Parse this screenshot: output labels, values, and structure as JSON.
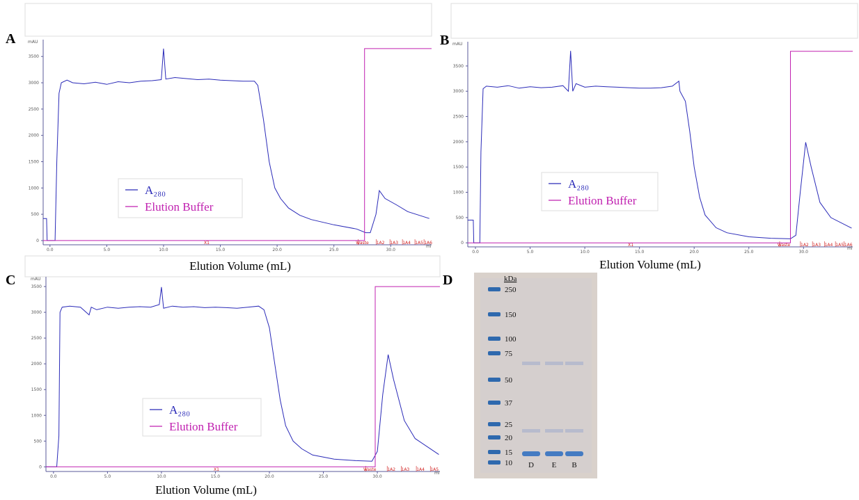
{
  "chart_data": [
    {
      "type": "line",
      "panel": "A",
      "x_label": "Elution Volume (mL)",
      "y_unit": "mAU",
      "x_unit": "ml",
      "xlim": [
        -0.6,
        33.6
      ],
      "ylim": [
        -80,
        3820
      ],
      "xticks": [
        {
          "value": 0,
          "label": "0.0"
        },
        {
          "value": 5,
          "label": "5.0"
        },
        {
          "value": 10,
          "label": "10.0"
        },
        {
          "value": 15,
          "label": "15.0"
        },
        {
          "value": 20,
          "label": "20.0"
        },
        {
          "value": 25,
          "label": "25.0"
        },
        {
          "value": 30,
          "label": "30.0"
        }
      ],
      "yticks": [
        0,
        500,
        1000,
        1500,
        2000,
        2500,
        3000,
        3500
      ],
      "annotations": [
        {
          "x": 13.8,
          "label": "X1"
        },
        {
          "x": 27.5,
          "label": "Waste"
        },
        {
          "x": 29.1,
          "label": "1A2"
        },
        {
          "x": 30.3,
          "label": "1A3"
        },
        {
          "x": 31.4,
          "label": "1A4"
        },
        {
          "x": 32.5,
          "label": "1A5"
        },
        {
          "x": 33.3,
          "label": "1A6"
        }
      ],
      "series": [
        {
          "name": "A₂₈₀",
          "color": "#2a2ab8",
          "x": [
            -0.6,
            -0.3,
            -0.25,
            0.45,
            0.6,
            0.8,
            1.0,
            1.5,
            2,
            3,
            4,
            5,
            6,
            7,
            8,
            9,
            9.8,
            10.0,
            10.2,
            11,
            12,
            13,
            14,
            15,
            16,
            17,
            18,
            18.3,
            18.8,
            19.3,
            19.8,
            20.3,
            21,
            22,
            23,
            25,
            27,
            27.8,
            28.2,
            28.7,
            29.0,
            29.5,
            30.5,
            31.5,
            33.4
          ],
          "values": [
            420,
            420,
            0,
            0,
            1500,
            2800,
            3000,
            3050,
            3000,
            2980,
            3010,
            2970,
            3020,
            3000,
            3030,
            3040,
            3060,
            3650,
            3070,
            3100,
            3080,
            3060,
            3070,
            3050,
            3040,
            3030,
            3030,
            2950,
            2300,
            1500,
            1000,
            800,
            620,
            480,
            400,
            300,
            220,
            150,
            150,
            500,
            950,
            800,
            680,
            550,
            420
          ]
        },
        {
          "name": "Elution Buffer",
          "color": "#c020b0",
          "x": [
            -0.6,
            27.7,
            27.7,
            33.6
          ],
          "values": [
            0,
            0,
            3650,
            3650
          ]
        }
      ]
    },
    {
      "type": "line",
      "panel": "B",
      "x_label": "Elution Volume (mL)",
      "y_unit": "mAU",
      "x_unit": "ml",
      "xlim": [
        -0.7,
        34.5
      ],
      "ylim": [
        -80,
        3980
      ],
      "xticks": [
        {
          "value": 0,
          "label": "0.0"
        },
        {
          "value": 5,
          "label": "5.0"
        },
        {
          "value": 10,
          "label": "10.0"
        },
        {
          "value": 15,
          "label": "15.0"
        },
        {
          "value": 20,
          "label": "20.0"
        },
        {
          "value": 25,
          "label": "25.0"
        },
        {
          "value": 30,
          "label": "30.0"
        }
      ],
      "yticks": [
        0,
        500,
        1000,
        1500,
        2000,
        2500,
        3000,
        3500
      ],
      "annotations": [
        {
          "x": 14.2,
          "label": "X1"
        },
        {
          "x": 28.2,
          "label": "Waste"
        },
        {
          "x": 30.1,
          "label": "1A2"
        },
        {
          "x": 31.2,
          "label": "1A3"
        },
        {
          "x": 32.3,
          "label": "1A4"
        },
        {
          "x": 33.3,
          "label": "1A5"
        },
        {
          "x": 34.1,
          "label": "1A6"
        }
      ],
      "series": [
        {
          "name": "A₂₈₀",
          "color": "#2a2ab8",
          "x": [
            -0.7,
            -0.2,
            -0.15,
            0.4,
            0.5,
            0.7,
            1,
            2,
            3,
            4,
            5,
            6,
            7,
            8,
            8.5,
            8.7,
            8.9,
            9.2,
            10,
            11,
            12,
            13,
            14,
            15,
            16,
            17,
            18,
            18.6,
            18.7,
            19.2,
            19.6,
            20,
            20.5,
            21,
            22,
            23,
            25,
            27,
            28.8,
            29.3,
            29.7,
            30.2,
            30.7,
            31.5,
            32.5,
            34.4
          ],
          "values": [
            450,
            450,
            0,
            0,
            1800,
            3050,
            3100,
            3080,
            3110,
            3060,
            3090,
            3070,
            3080,
            3110,
            3000,
            3800,
            3000,
            3150,
            3080,
            3100,
            3090,
            3080,
            3070,
            3060,
            3060,
            3070,
            3100,
            3200,
            3000,
            2800,
            2200,
            1500,
            900,
            550,
            300,
            200,
            120,
            90,
            80,
            150,
            1000,
            1990,
            1500,
            800,
            500,
            290
          ]
        },
        {
          "name": "Elution Buffer",
          "color": "#c020b0",
          "x": [
            -0.7,
            28.8,
            28.8,
            34.5
          ],
          "values": [
            0,
            0,
            3790,
            3790
          ]
        }
      ]
    },
    {
      "type": "line",
      "panel": "C",
      "x_label": "Elution Volume (mL)",
      "y_unit": "mAU",
      "x_unit": "ml",
      "xlim": [
        -0.7,
        35.8
      ],
      "ylim": [
        -90,
        3690
      ],
      "xticks": [
        {
          "value": 0,
          "label": "0.0"
        },
        {
          "value": 5,
          "label": "5.0"
        },
        {
          "value": 10,
          "label": "10.0"
        },
        {
          "value": 15,
          "label": "15.0"
        },
        {
          "value": 20,
          "label": "20.0"
        },
        {
          "value": 25,
          "label": "25.0"
        },
        {
          "value": 30,
          "label": "30.0"
        }
      ],
      "yticks": [
        0,
        500,
        1000,
        1500,
        2000,
        2500,
        3000,
        3500
      ],
      "annotations": [
        {
          "x": 15.1,
          "label": "X1"
        },
        {
          "x": 29.3,
          "label": "Waste"
        },
        {
          "x": 31.3,
          "label": "1A2"
        },
        {
          "x": 32.6,
          "label": "1A3"
        },
        {
          "x": 34.0,
          "label": "1A4"
        },
        {
          "x": 35.3,
          "label": "1A5"
        }
      ],
      "series": [
        {
          "name": "A₂₈₀",
          "color": "#2a2ab8",
          "x": [
            -0.7,
            0.3,
            0.5,
            0.6,
            0.8,
            1.5,
            2.5,
            3.3,
            3.5,
            4,
            5,
            6,
            7,
            8,
            9,
            9.8,
            10.0,
            10.2,
            11,
            12,
            13,
            14,
            15,
            16,
            17,
            18,
            19,
            19.5,
            20,
            20.5,
            21,
            21.5,
            22.2,
            23,
            24,
            26,
            28,
            29.5,
            30,
            30.5,
            31.0,
            31.5,
            32.5,
            33.5,
            35.7
          ],
          "values": [
            0,
            0,
            600,
            3000,
            3100,
            3120,
            3100,
            2950,
            3100,
            3050,
            3100,
            3080,
            3100,
            3110,
            3100,
            3150,
            3490,
            3080,
            3120,
            3100,
            3110,
            3090,
            3100,
            3090,
            3080,
            3100,
            3120,
            3050,
            2700,
            2000,
            1300,
            800,
            500,
            350,
            230,
            150,
            120,
            110,
            300,
            1400,
            2180,
            1700,
            900,
            550,
            240
          ]
        },
        {
          "name": "Elution Buffer",
          "color": "#c020b0",
          "x": [
            -0.7,
            29.8,
            29.8,
            35.8
          ],
          "values": [
            0,
            0,
            3500,
            3500
          ]
        }
      ]
    }
  ],
  "gel": {
    "panel": "D",
    "unit": "kDa",
    "ladder": [
      250,
      150,
      100,
      75,
      50,
      37,
      25,
      20,
      15,
      10
    ],
    "lanes": [
      "D",
      "E",
      "B"
    ]
  }
}
